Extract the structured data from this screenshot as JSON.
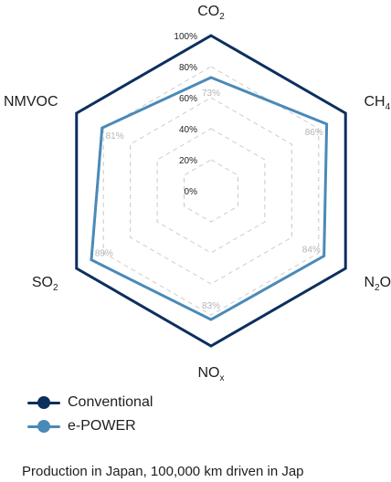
{
  "chart_data": {
    "type": "radar",
    "axes": [
      "CO2",
      "CH4",
      "N2O",
      "NOx",
      "SO2",
      "NMVOC"
    ],
    "axis_labels": [
      {
        "main": "CO",
        "sub": "2",
        "sub_type": "sub"
      },
      {
        "main": "CH",
        "sub": "4",
        "sub_type": "sub"
      },
      {
        "main": "N",
        "sub": "2",
        "rest": "O",
        "sub_type": "sub"
      },
      {
        "main": "NO",
        "sub": "x",
        "sub_type": "sub"
      },
      {
        "main": "SO",
        "sub": "2",
        "sub_type": "sub"
      },
      {
        "main": "NMVOC",
        "sub": "",
        "sub_type": "sub"
      }
    ],
    "ticks": [
      0,
      20,
      40,
      60,
      80,
      100
    ],
    "tick_labels": [
      "0%",
      "20%",
      "40%",
      "60%",
      "80%",
      "100%"
    ],
    "rmax": 100,
    "series": [
      {
        "name": "Conventional",
        "values": [
          100,
          100,
          100,
          100,
          100,
          100
        ],
        "color": "#0d2f5e"
      },
      {
        "name": "e-POWER",
        "values": [
          73,
          86,
          84,
          83,
          89,
          81
        ],
        "color": "#4a8ab8"
      }
    ],
    "data_labels": [
      "73%",
      "86%",
      "84%",
      "83%",
      "89%",
      "81%"
    ]
  },
  "legend": {
    "items": [
      {
        "label": "Conventional",
        "color": "#0d2f5e"
      },
      {
        "label": "e-POWER",
        "color": "#4a8ab8"
      }
    ]
  },
  "caption": "Production in Japan, 100,000 km driven in Jap"
}
